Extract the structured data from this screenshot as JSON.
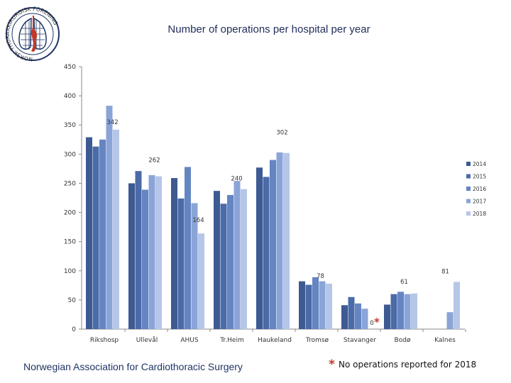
{
  "chart_data": {
    "type": "bar",
    "title": "Number of operations per hospital per year",
    "categories": [
      "Rikshosp",
      "Ullevål",
      "AHUS",
      "Tr.Heim",
      "Haukeland",
      "Tromsø",
      "Stavanger",
      "Bodø",
      "Kalnes"
    ],
    "series": [
      {
        "name": "2014",
        "color": "#3d5a92",
        "values": [
          329,
          250,
          259,
          237,
          277,
          82,
          41,
          42,
          null
        ]
      },
      {
        "name": "2015",
        "color": "#4b6aa8",
        "values": [
          313,
          271,
          224,
          215,
          261,
          76,
          55,
          60,
          null
        ]
      },
      {
        "name": "2016",
        "color": "#6585c2",
        "values": [
          325,
          239,
          278,
          230,
          290,
          89,
          44,
          64,
          null
        ]
      },
      {
        "name": "2017",
        "color": "#8aa4d8",
        "values": [
          383,
          264,
          216,
          254,
          303,
          82,
          35,
          60,
          29
        ]
      },
      {
        "name": "2018",
        "color": "#b6c6e8",
        "values": [
          342,
          262,
          164,
          240,
          302,
          78,
          0,
          61,
          81
        ]
      }
    ],
    "ylim": [
      0,
      450
    ],
    "yticks": [
      0,
      50,
      100,
      150,
      200,
      250,
      300,
      350,
      400,
      450
    ],
    "data_labels": [
      {
        "category": "Rikshosp",
        "text": "342"
      },
      {
        "category": "Ullevål",
        "text": "262"
      },
      {
        "category": "AHUS",
        "text": "164"
      },
      {
        "category": "Tr.Heim",
        "text": "240"
      },
      {
        "category": "Haukeland",
        "text": "302"
      },
      {
        "category": "Tromsø",
        "text": "78"
      },
      {
        "category": "Stavanger",
        "text": "0"
      },
      {
        "category": "Bodø",
        "text": "61"
      },
      {
        "category": "Kalnes",
        "text": "81"
      }
    ],
    "xlabel": "",
    "ylabel": "",
    "legend_position": "right",
    "grid": false
  },
  "footer": {
    "organization": "Norwegian Association for Cardiothoracic Surgery",
    "note_star": "*",
    "note_text": "No operations reported for 2018",
    "marker_star": "*"
  },
  "logo": {
    "ring_text": "NORSK THORAXKIRURGISK FORENING",
    "ring_color": "#1f3566",
    "accent_color": "#c0392b"
  }
}
